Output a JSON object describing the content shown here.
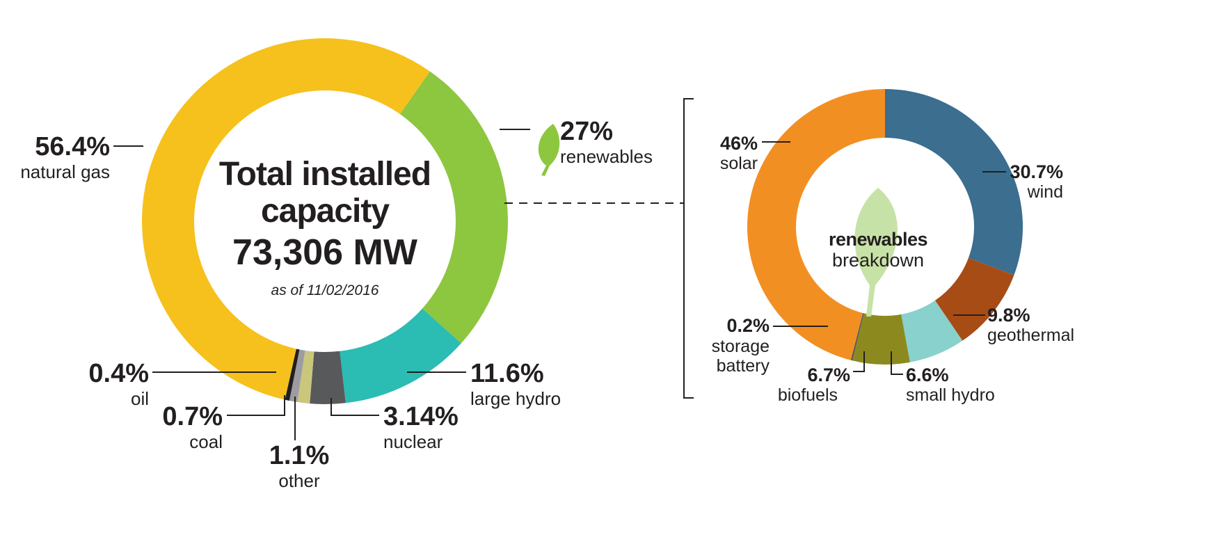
{
  "chart_data": [
    {
      "type": "donut",
      "title": "Total installed capacity",
      "center_value": "73,306 MW",
      "note": "as of 11/02/2016",
      "categories": [
        "renewables",
        "large hydro",
        "nuclear",
        "other",
        "coal",
        "oil",
        "natural gas"
      ],
      "values": [
        27,
        11.6,
        3.14,
        1.1,
        0.7,
        0.4,
        56.4
      ],
      "value_labels": [
        "27%",
        "11.6%",
        "3.14%",
        "1.1%",
        "0.7%",
        "0.4%",
        "56.4%"
      ],
      "colors": [
        "#8dc63f",
        "#2bbcb3",
        "#58595b",
        "#c9c77c",
        "#9d9ca3",
        "#231f20",
        "#f6c11c"
      ]
    },
    {
      "type": "donut",
      "title": "renewables",
      "subtitle": "breakdown",
      "categories": [
        "wind",
        "geothermal",
        "small hydro",
        "biofuels",
        "storage battery",
        "solar"
      ],
      "values": [
        30.7,
        9.8,
        6.6,
        6.7,
        0.2,
        46
      ],
      "value_labels": [
        "30.7%",
        "9.8%",
        "6.6%",
        "6.7%",
        "0.2%",
        "46%"
      ],
      "colors": [
        "#3b6e8f",
        "#a84c15",
        "#88d1cd",
        "#8c8a1f",
        "#5a5a5a",
        "#f28f22"
      ]
    }
  ]
}
